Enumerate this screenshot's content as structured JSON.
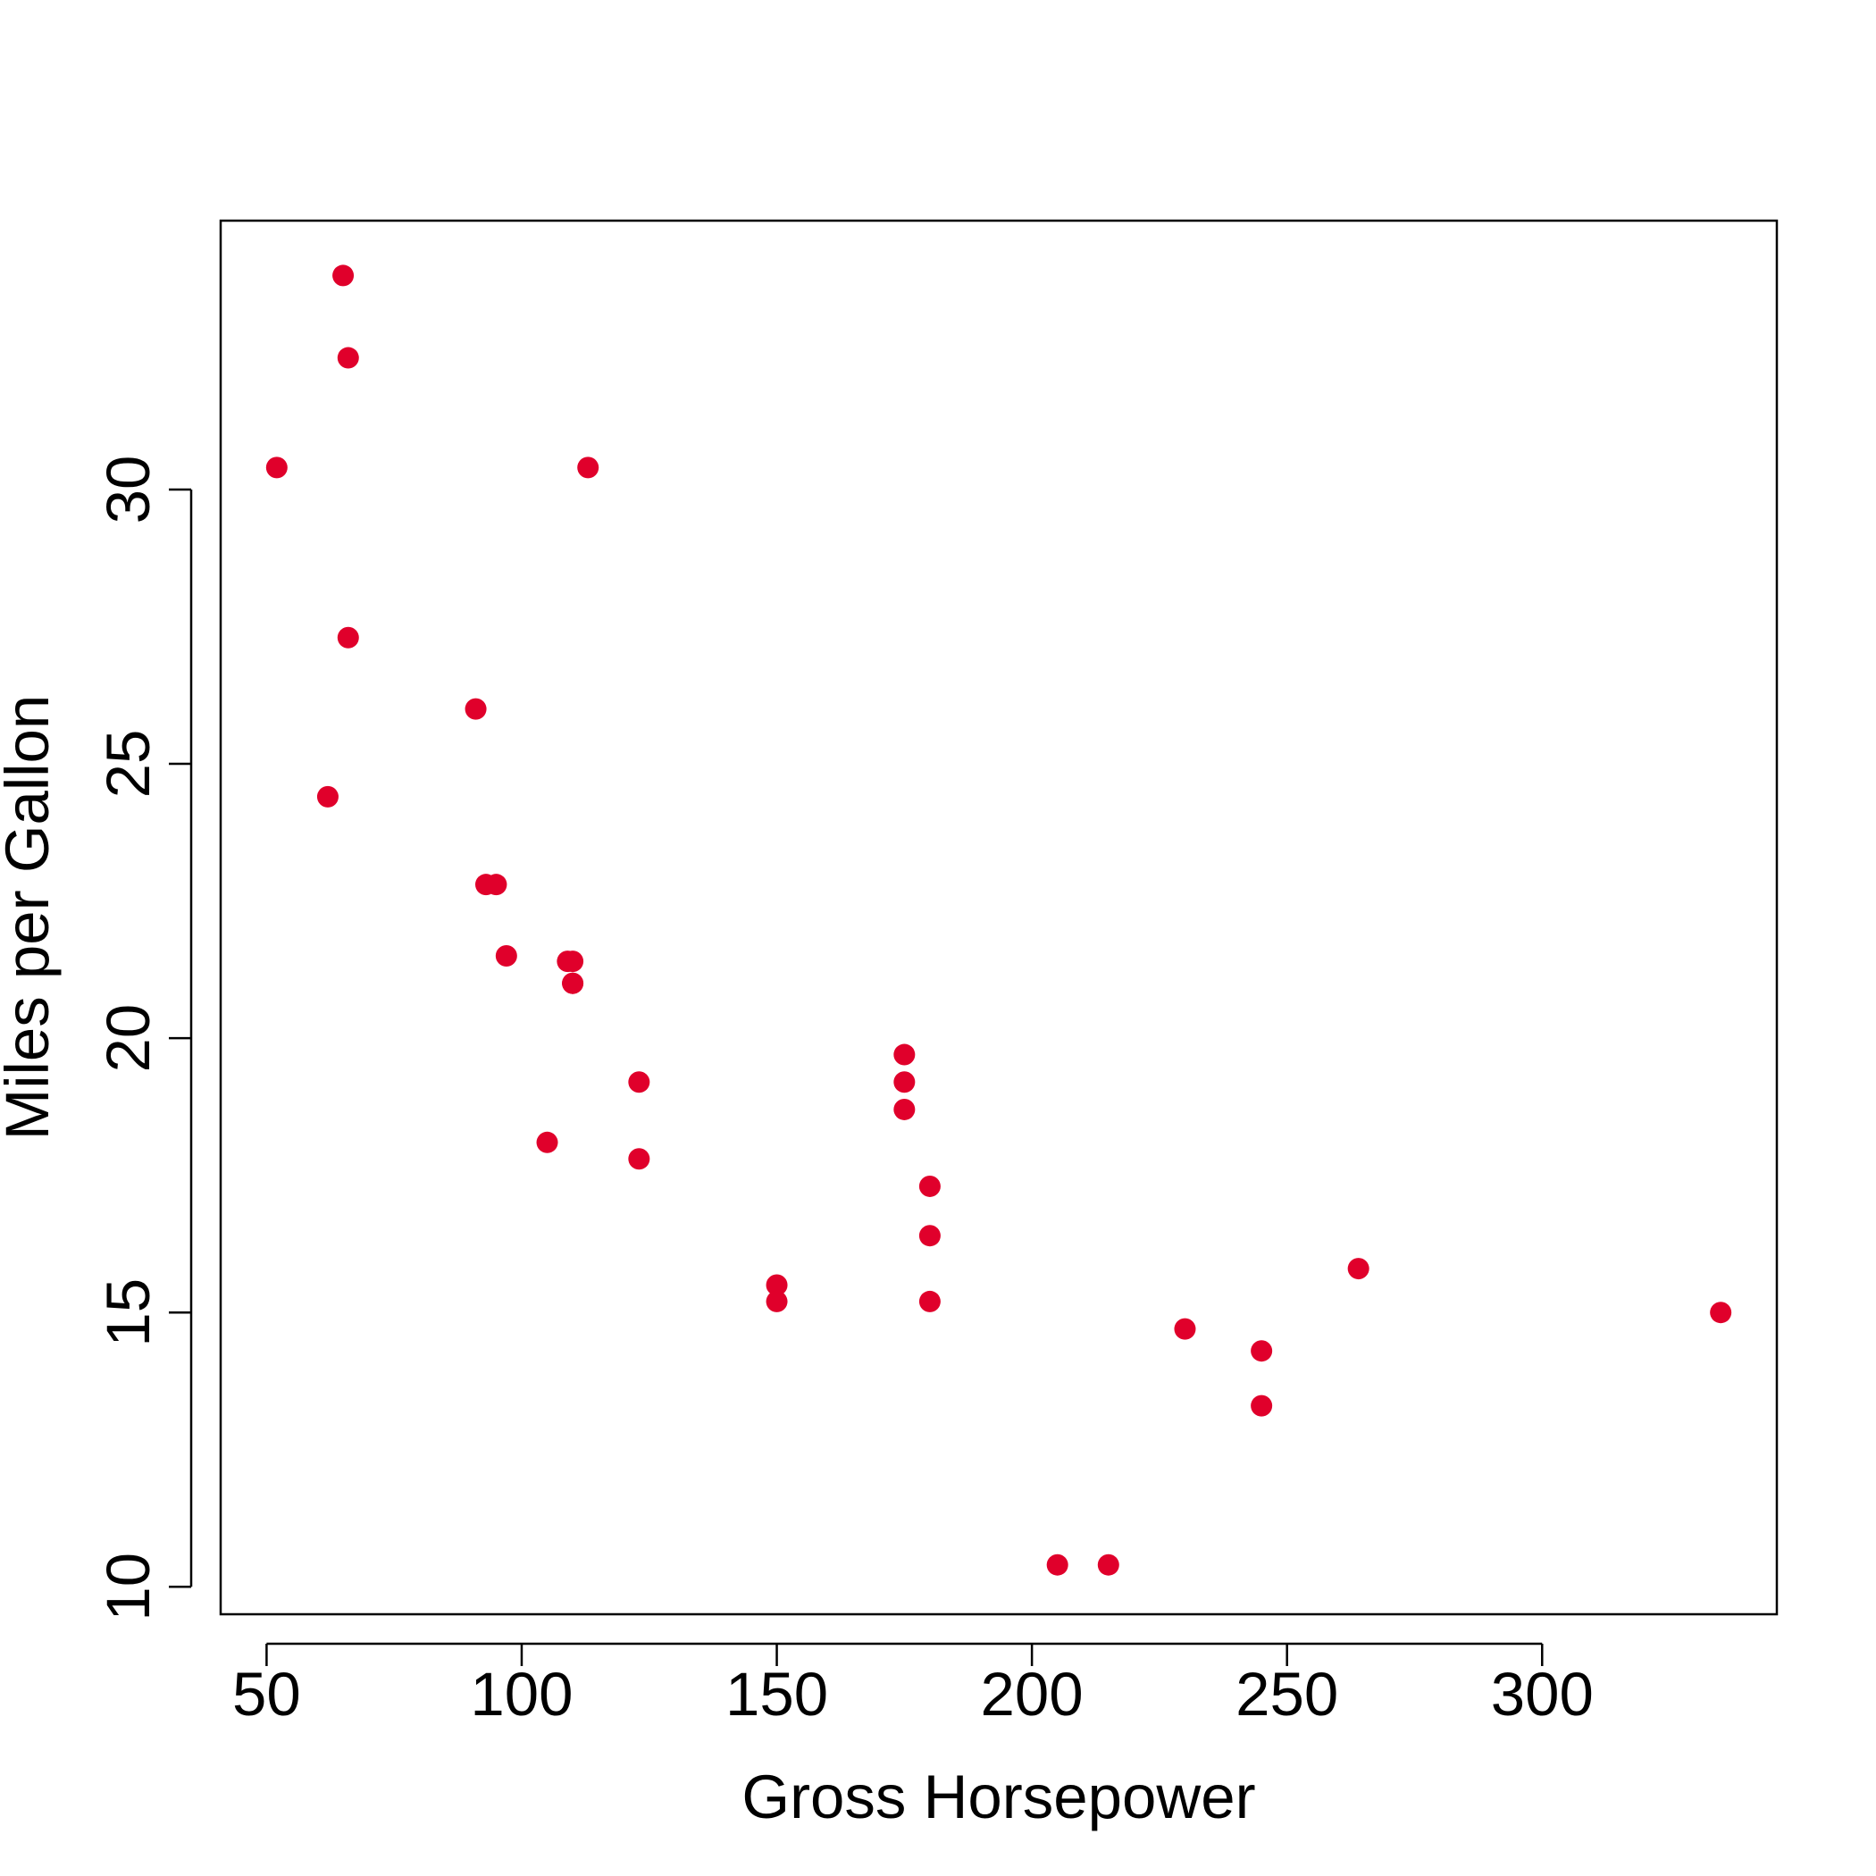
{
  "chart_data": {
    "type": "scatter",
    "title": "",
    "xlabel": "Gross Horsepower",
    "ylabel": "Miles per Gallon",
    "xlim": [
      41,
      346
    ],
    "ylim": [
      9.5,
      34.9
    ],
    "xticks": [
      50,
      100,
      150,
      200,
      250,
      300
    ],
    "yticks": [
      10,
      15,
      20,
      25,
      30
    ],
    "xtick_labels": [
      "50",
      "100",
      "150",
      "200",
      "250",
      "300"
    ],
    "ytick_labels": [
      "10",
      "15",
      "20",
      "25",
      "30"
    ],
    "grid": false,
    "legend": "none",
    "point_color": "#e0002b",
    "series": [
      {
        "x": [
          110,
          110,
          93,
          110,
          175,
          105,
          245,
          62,
          95,
          123,
          123,
          180,
          180,
          180,
          205,
          215,
          230,
          66,
          52,
          65,
          97,
          150,
          150,
          245,
          175,
          66,
          91,
          113,
          264,
          175,
          335,
          109
        ],
        "y": [
          21.0,
          21.0,
          22.8,
          21.4,
          18.7,
          18.1,
          14.3,
          24.4,
          22.8,
          19.2,
          17.8,
          16.4,
          17.3,
          15.2,
          10.4,
          10.4,
          14.7,
          32.4,
          30.4,
          33.9,
          21.5,
          15.5,
          15.2,
          13.3,
          19.2,
          27.3,
          26.0,
          30.4,
          15.8,
          19.7,
          15.0,
          21.4
        ]
      }
    ]
  }
}
